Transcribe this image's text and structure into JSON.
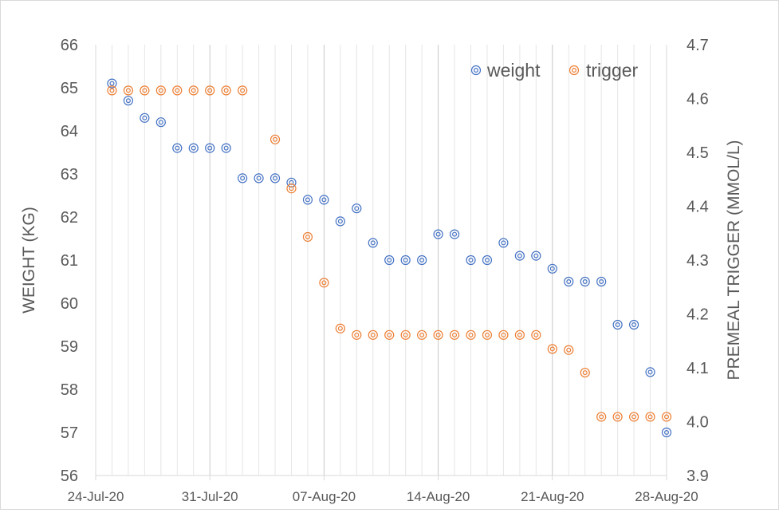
{
  "chart_data": {
    "type": "scatter",
    "title": "",
    "xlabel": "",
    "ylabel": "WEIGHT (KG)",
    "y2label": "PREMEAL TRIGGER (MMOL/L)",
    "ylim": [
      56,
      66
    ],
    "y2lim": [
      3.9,
      4.7
    ],
    "yticks": [
      56,
      57,
      58,
      59,
      60,
      61,
      62,
      63,
      64,
      65,
      66
    ],
    "y2ticks": [
      "3.9",
      "4.0",
      "4.1",
      "4.2",
      "4.3",
      "4.4",
      "4.5",
      "4.6",
      "4.7"
    ],
    "x_start": "2020-07-24",
    "x_end": "2020-08-28",
    "xticks": [
      {
        "date": "2020-07-24",
        "label": "24-Jul-20"
      },
      {
        "date": "2020-07-31",
        "label": "31-Jul-20"
      },
      {
        "date": "2020-08-07",
        "label": "07-Aug-20"
      },
      {
        "date": "2020-08-14",
        "label": "14-Aug-20"
      },
      {
        "date": "2020-08-21",
        "label": "21-Aug-20"
      },
      {
        "date": "2020-08-28",
        "label": "28-Aug-20"
      }
    ],
    "grid": "vertical-daily",
    "legend_position": "top-right",
    "colors": {
      "weight": "#4472c4",
      "trigger": "#ed7d31",
      "grid": "#d9d9d9",
      "text": "#595959"
    },
    "series": [
      {
        "name": "weight",
        "axis": "left",
        "points": [
          [
            "2020-07-25",
            65.1
          ],
          [
            "2020-07-26",
            64.7
          ],
          [
            "2020-07-27",
            64.3
          ],
          [
            "2020-07-28",
            64.2
          ],
          [
            "2020-07-29",
            63.6
          ],
          [
            "2020-07-30",
            63.6
          ],
          [
            "2020-07-31",
            63.6
          ],
          [
            "2020-08-01",
            63.6
          ],
          [
            "2020-08-02",
            62.9
          ],
          [
            "2020-08-03",
            62.9
          ],
          [
            "2020-08-04",
            62.9
          ],
          [
            "2020-08-05",
            62.8
          ],
          [
            "2020-08-06",
            62.4
          ],
          [
            "2020-08-07",
            62.4
          ],
          [
            "2020-08-08",
            61.9
          ],
          [
            "2020-08-09",
            62.2
          ],
          [
            "2020-08-10",
            61.4
          ],
          [
            "2020-08-11",
            61.0
          ],
          [
            "2020-08-12",
            61.0
          ],
          [
            "2020-08-13",
            61.0
          ],
          [
            "2020-08-14",
            61.6
          ],
          [
            "2020-08-15",
            61.6
          ],
          [
            "2020-08-16",
            61.0
          ],
          [
            "2020-08-17",
            61.0
          ],
          [
            "2020-08-18",
            61.4
          ],
          [
            "2020-08-19",
            61.1
          ],
          [
            "2020-08-20",
            61.1
          ],
          [
            "2020-08-21",
            60.8
          ],
          [
            "2020-08-22",
            60.5
          ],
          [
            "2020-08-23",
            60.5
          ],
          [
            "2020-08-24",
            60.5
          ],
          [
            "2020-08-25",
            59.5
          ],
          [
            "2020-08-26",
            59.5
          ],
          [
            "2020-08-27",
            58.4
          ],
          [
            "2020-08-28",
            57.0
          ]
        ]
      },
      {
        "name": "trigger",
        "axis": "right",
        "points": [
          [
            "2020-07-25",
            4.615
          ],
          [
            "2020-07-26",
            4.615
          ],
          [
            "2020-07-27",
            4.615
          ],
          [
            "2020-07-28",
            4.615
          ],
          [
            "2020-07-29",
            4.615
          ],
          [
            "2020-07-30",
            4.615
          ],
          [
            "2020-07-31",
            4.615
          ],
          [
            "2020-08-01",
            4.615
          ],
          [
            "2020-08-02",
            4.615
          ],
          [
            "2020-08-04",
            4.524
          ],
          [
            "2020-08-05",
            4.433
          ],
          [
            "2020-08-06",
            4.343
          ],
          [
            "2020-08-07",
            4.258
          ],
          [
            "2020-08-08",
            4.173
          ],
          [
            "2020-08-09",
            4.161
          ],
          [
            "2020-08-10",
            4.161
          ],
          [
            "2020-08-11",
            4.161
          ],
          [
            "2020-08-12",
            4.161
          ],
          [
            "2020-08-13",
            4.161
          ],
          [
            "2020-08-14",
            4.161
          ],
          [
            "2020-08-15",
            4.161
          ],
          [
            "2020-08-16",
            4.161
          ],
          [
            "2020-08-17",
            4.161
          ],
          [
            "2020-08-18",
            4.161
          ],
          [
            "2020-08-19",
            4.161
          ],
          [
            "2020-08-20",
            4.161
          ],
          [
            "2020-08-21",
            4.135
          ],
          [
            "2020-08-22",
            4.133
          ],
          [
            "2020-08-23",
            4.091
          ],
          [
            "2020-08-24",
            4.009
          ],
          [
            "2020-08-25",
            4.009
          ],
          [
            "2020-08-26",
            4.009
          ],
          [
            "2020-08-27",
            4.009
          ],
          [
            "2020-08-28",
            4.009
          ]
        ]
      }
    ]
  }
}
